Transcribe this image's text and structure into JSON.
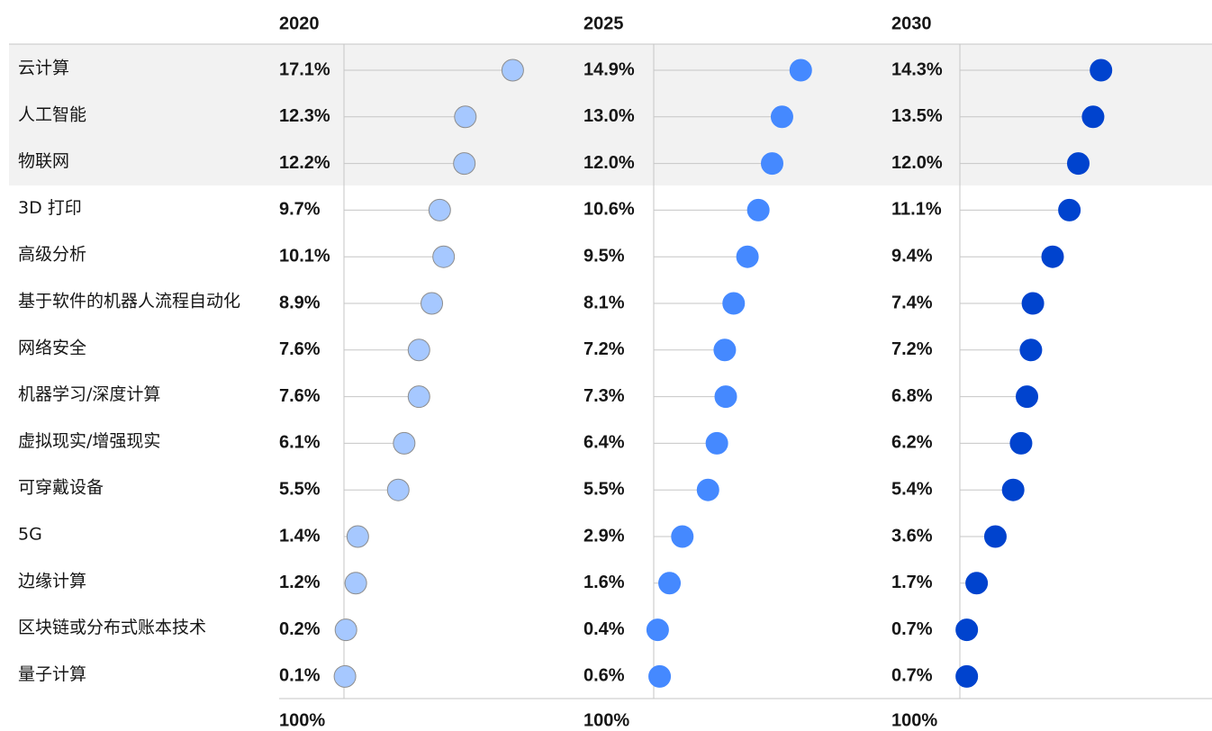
{
  "chart_data": {
    "type": "dot",
    "categories": [
      "云计算",
      "人工智能",
      "物联网",
      "3D 打印",
      "高级分析",
      "基于软件的机器人流程自动化",
      "网络安全",
      "机器学习/深度计算",
      "虚拟现实/增强现实",
      "可穿戴设备",
      "5G",
      "边缘计算",
      "区块链或分布式账本技术",
      "量子计算"
    ],
    "series": [
      {
        "name": "2020",
        "color": "#a6c8ff",
        "values": [
          17.1,
          12.3,
          12.2,
          9.7,
          10.1,
          8.9,
          7.6,
          7.6,
          6.1,
          5.5,
          1.4,
          1.2,
          0.2,
          0.1
        ],
        "value_labels": [
          "17.1%",
          "12.3%",
          "12.2%",
          "9.7%",
          "10.1%",
          "8.9%",
          "7.6%",
          "7.6%",
          "6.1%",
          "5.5%",
          "1.4%",
          "1.2%",
          "0.2%",
          "0.1%"
        ]
      },
      {
        "name": "2025",
        "color": "#4589ff",
        "values": [
          14.9,
          13.0,
          12.0,
          10.6,
          9.5,
          8.1,
          7.2,
          7.3,
          6.4,
          5.5,
          2.9,
          1.6,
          0.4,
          0.6
        ],
        "value_labels": [
          "14.9%",
          "13.0%",
          "12.0%",
          "10.6%",
          "9.5%",
          "8.1%",
          "7.2%",
          "7.3%",
          "6.4%",
          "5.5%",
          "2.9%",
          "1.6%",
          "0.4%",
          "0.6%"
        ]
      },
      {
        "name": "2030",
        "color": "#0043ce",
        "values": [
          14.3,
          13.5,
          12.0,
          11.1,
          9.4,
          7.4,
          7.2,
          6.8,
          6.2,
          5.4,
          3.6,
          1.7,
          0.7,
          0.7
        ],
        "value_labels": [
          "14.3%",
          "13.5%",
          "12.0%",
          "11.1%",
          "9.4%",
          "7.4%",
          "7.2%",
          "6.8%",
          "6.2%",
          "5.4%",
          "3.6%",
          "1.7%",
          "0.7%",
          "0.7%"
        ]
      }
    ],
    "column_footers": [
      "100%",
      "100%",
      "100%"
    ],
    "xlim": [
      0,
      24
    ],
    "highlight_count": 3
  }
}
